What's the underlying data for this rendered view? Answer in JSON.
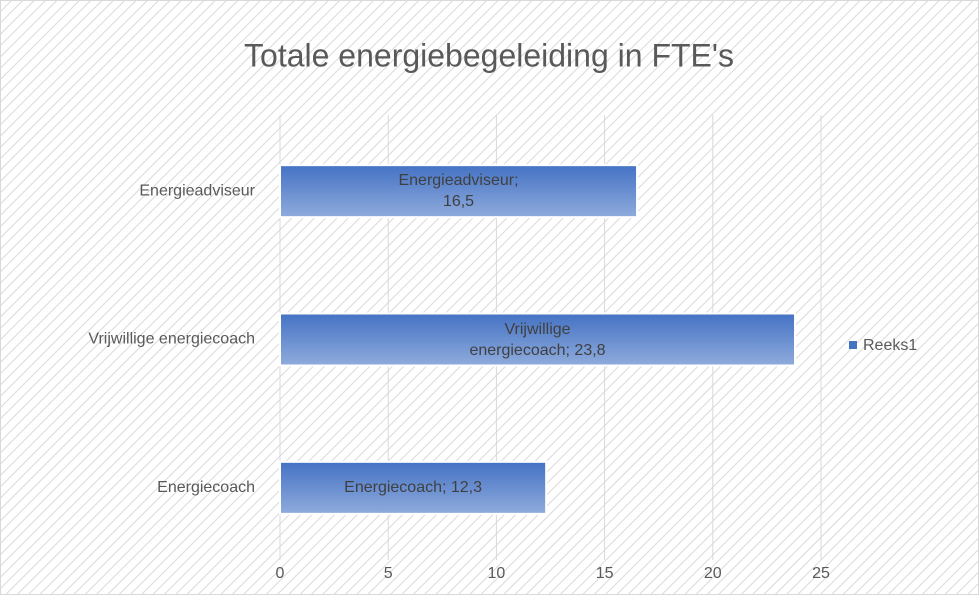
{
  "chart_data": {
    "type": "bar",
    "orientation": "horizontal",
    "title": "Totale energiebegeleiding in FTE's",
    "categories": [
      "Energieadviseur",
      "Vrijwillige energiecoach",
      "Energiecoach"
    ],
    "series": [
      {
        "name": "Reeks1",
        "color": "#4472c4",
        "values": [
          16.5,
          23.8,
          12.3
        ],
        "value_labels": [
          "Energieadviseur; 16,5",
          "Vrijwillige energiecoach; 23,8",
          "Energiecoach; 12,3"
        ]
      }
    ],
    "xlim": [
      0,
      25
    ],
    "xticks": [
      0,
      5,
      10,
      15,
      20,
      25
    ],
    "grid": true,
    "legend": "right"
  }
}
